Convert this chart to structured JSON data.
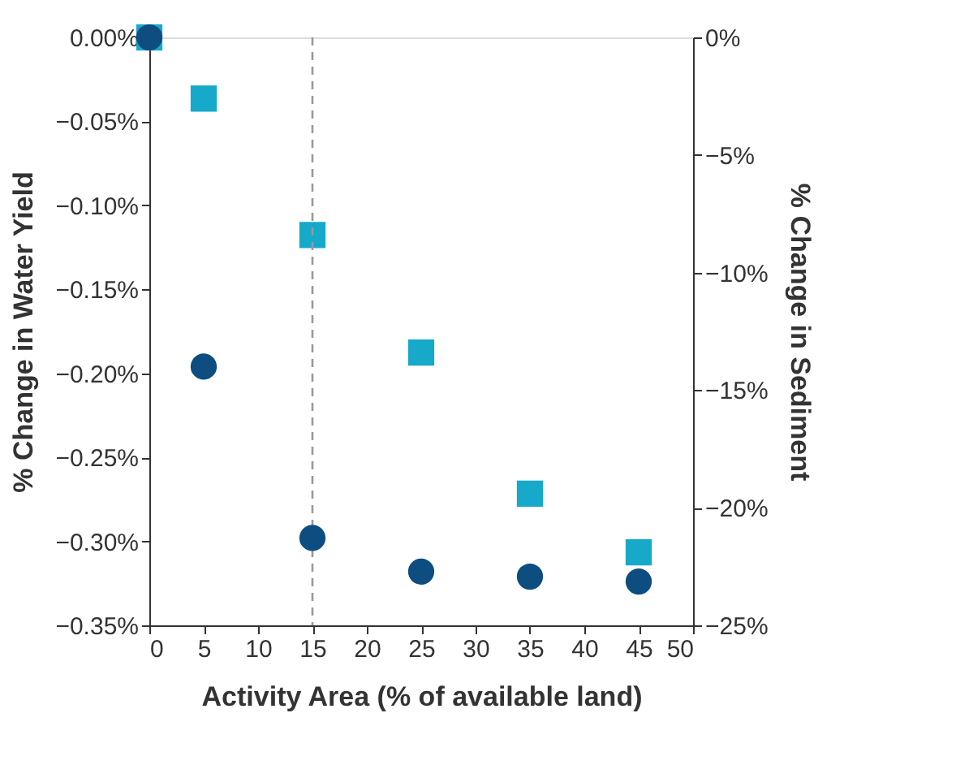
{
  "chart_data": {
    "type": "scatter",
    "xlabel": "Activity Area (% of available land)",
    "ylabel": "% Change in Water Yield",
    "y2label": "% Change in Sediment",
    "x": [
      0,
      5,
      15,
      25,
      35,
      45
    ],
    "series": [
      {
        "color": "#0d4d80",
        "marker": "circle",
        "values": [
          0,
          -0.196,
          -0.298,
          -0.318,
          -0.321,
          -0.324
        ]
      },
      {
        "color": "#16a9c9",
        "marker": "square",
        "axis": "y2",
        "values": [
          0,
          -2.6,
          -8.4,
          -13.4,
          -19.4,
          -21.9
        ]
      }
    ],
    "xlim": [
      0,
      50
    ],
    "xticks": [
      0,
      5,
      10,
      15,
      20,
      25,
      30,
      35,
      40,
      45,
      50
    ],
    "ylim": [
      -0.35,
      0
    ],
    "yticks": [
      {
        "value": 0,
        "label": "0.00%"
      },
      {
        "value": -0.05,
        "label": "−0.05%"
      },
      {
        "value": -0.1,
        "label": "−0.10%"
      },
      {
        "value": -0.15,
        "label": "−0.15%"
      },
      {
        "value": -0.2,
        "label": "−0.20%"
      },
      {
        "value": -0.25,
        "label": "−0.25%"
      },
      {
        "value": -0.3,
        "label": "−0.30%"
      },
      {
        "value": -0.35,
        "label": "−0.35%"
      }
    ],
    "y2lim": [
      -25,
      0
    ],
    "y2ticks": [
      {
        "value": 0,
        "label": "0%"
      },
      {
        "value": -5,
        "label": "−5%"
      },
      {
        "value": -10,
        "label": "−10%"
      },
      {
        "value": -15,
        "label": "−15%"
      },
      {
        "value": -20,
        "label": "−20%"
      },
      {
        "value": -25,
        "label": "−25%"
      }
    ],
    "ref_lines": [
      {
        "axis": "x",
        "value": 15,
        "color": "#999999",
        "line_style": "dashed"
      }
    ],
    "grid": false
  }
}
